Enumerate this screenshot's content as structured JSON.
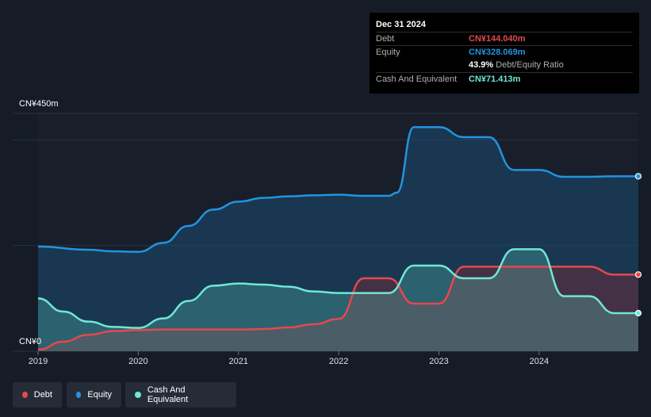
{
  "tooltip": {
    "date": "Dec 31 2024",
    "debt_label": "Debt",
    "debt_value": "CN¥144.040m",
    "equity_label": "Equity",
    "equity_value": "CN¥328.069m",
    "ratio_value": "43.9%",
    "ratio_label": "Debt/Equity Ratio",
    "cash_label": "Cash And Equivalent",
    "cash_value": "CN¥71.413m"
  },
  "legend": [
    {
      "label": "Debt",
      "color": "#e5484d"
    },
    {
      "label": "Equity",
      "color": "#2394df"
    },
    {
      "label": "Cash And Equivalent",
      "color": "#6ee8d5"
    }
  ],
  "colors": {
    "debt": "#e5484d",
    "equity": "#2394df",
    "cash": "#6ee8d5"
  },
  "chart_data": {
    "type": "area",
    "y_top_label": "CN¥450m",
    "y_bottom_label": "CN¥0",
    "x_tick_labels": [
      "2019",
      "2020",
      "2021",
      "2022",
      "2023",
      "2024"
    ],
    "ylim": [
      0,
      450
    ],
    "xlim": [
      2019,
      2024.99
    ],
    "series": [
      {
        "name": "Equity",
        "key": "equity",
        "points": [
          [
            2019.0,
            198
          ],
          [
            2019.5,
            192
          ],
          [
            2019.75,
            189
          ],
          [
            2020.0,
            188
          ],
          [
            2020.25,
            205
          ],
          [
            2020.5,
            237
          ],
          [
            2020.75,
            268
          ],
          [
            2021.0,
            283
          ],
          [
            2021.25,
            290
          ],
          [
            2021.5,
            293
          ],
          [
            2021.75,
            295
          ],
          [
            2022.0,
            296
          ],
          [
            2022.25,
            294
          ],
          [
            2022.5,
            294
          ],
          [
            2022.58,
            300
          ],
          [
            2022.75,
            424
          ],
          [
            2023.0,
            424
          ],
          [
            2023.25,
            405
          ],
          [
            2023.5,
            405
          ],
          [
            2023.75,
            343
          ],
          [
            2024.0,
            343
          ],
          [
            2024.25,
            330
          ],
          [
            2024.5,
            330
          ],
          [
            2024.75,
            331
          ],
          [
            2024.99,
            331
          ]
        ]
      },
      {
        "name": "Debt",
        "key": "debt",
        "points": [
          [
            2019.0,
            3
          ],
          [
            2019.25,
            18
          ],
          [
            2019.5,
            31
          ],
          [
            2019.75,
            38
          ],
          [
            2020.0,
            40
          ],
          [
            2020.25,
            41
          ],
          [
            2020.5,
            41
          ],
          [
            2020.75,
            41
          ],
          [
            2021.0,
            41
          ],
          [
            2021.25,
            42
          ],
          [
            2021.5,
            45
          ],
          [
            2021.75,
            51
          ],
          [
            2022.0,
            61
          ],
          [
            2022.25,
            138
          ],
          [
            2022.5,
            138
          ],
          [
            2022.75,
            90
          ],
          [
            2023.0,
            90
          ],
          [
            2023.25,
            160
          ],
          [
            2023.5,
            160
          ],
          [
            2023.75,
            160
          ],
          [
            2024.0,
            160
          ],
          [
            2024.25,
            160
          ],
          [
            2024.5,
            160
          ],
          [
            2024.75,
            145
          ],
          [
            2024.99,
            145
          ]
        ]
      },
      {
        "name": "Cash And Equivalent",
        "key": "cash",
        "points": [
          [
            2019.0,
            100
          ],
          [
            2019.25,
            75
          ],
          [
            2019.5,
            56
          ],
          [
            2019.75,
            46
          ],
          [
            2020.0,
            44
          ],
          [
            2020.25,
            62
          ],
          [
            2020.5,
            95
          ],
          [
            2020.75,
            124
          ],
          [
            2021.0,
            128
          ],
          [
            2021.25,
            126
          ],
          [
            2021.5,
            122
          ],
          [
            2021.75,
            113
          ],
          [
            2022.0,
            110
          ],
          [
            2022.5,
            110
          ],
          [
            2022.75,
            162
          ],
          [
            2023.0,
            162
          ],
          [
            2023.25,
            138
          ],
          [
            2023.5,
            138
          ],
          [
            2023.75,
            193
          ],
          [
            2024.0,
            193
          ],
          [
            2024.25,
            104
          ],
          [
            2024.5,
            104
          ],
          [
            2024.75,
            72
          ],
          [
            2024.99,
            72
          ]
        ]
      }
    ]
  }
}
